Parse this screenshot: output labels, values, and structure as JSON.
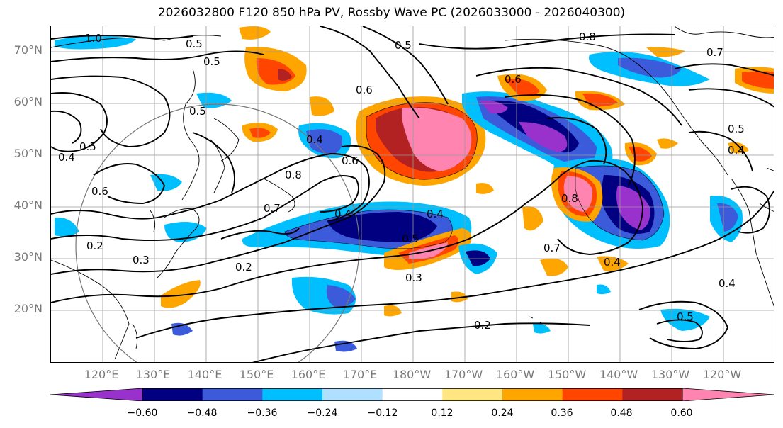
{
  "title": "2026032800 F120 850 hPa PV, Rossby Wave PC (2026033000 - 2026040300)",
  "lat_labels": [
    "70°N",
    "60°N",
    "50°N",
    "40°N",
    "30°N",
    "20°N"
  ],
  "lon_labels": [
    "120°E",
    "130°E",
    "140°E",
    "150°E",
    "160°E",
    "170°E",
    "180°W",
    "170°W",
    "160°W",
    "150°W",
    "140°W",
    "130°W",
    "120°W"
  ],
  "colorbar": {
    "ticks": [
      "−0.60",
      "−0.48",
      "−0.36",
      "−0.24",
      "−0.12",
      "0.12",
      "0.24",
      "0.36",
      "0.48",
      "0.60"
    ],
    "colors": [
      "#9932cc",
      "#000080",
      "#3b5bdb",
      "#00bfff",
      "#b0e0ff",
      "#ffffff",
      "#ffe680",
      "#ffa500",
      "#ff4500",
      "#b22222",
      "#ff85b0"
    ]
  },
  "contour_labels": [
    "1.0",
    "0.8",
    "0.5",
    "0.5",
    "0.5",
    "0.5",
    "0.6",
    "0.6",
    "0.5",
    "0.4",
    "0.4",
    "0.4",
    "0.3",
    "0.2",
    "0.2",
    "0.7",
    "0.8",
    "0.7",
    "0.8",
    "0.5",
    "0.3",
    "0.4",
    "0.4",
    "0.6",
    "0.4",
    "0.5",
    "0.4",
    "0.5",
    "0.6",
    "0.7",
    "0.2"
  ]
}
